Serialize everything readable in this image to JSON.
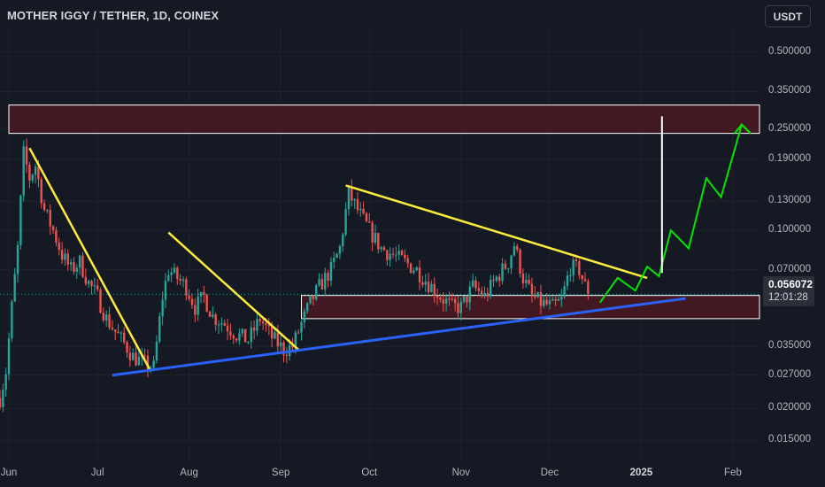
{
  "title": "MOTHER IGGY / TETHER, 1D, COINEX",
  "currency_button": "USDT",
  "colors": {
    "background": "#151924",
    "up": "#26a69a",
    "down": "#ef5350",
    "yellow_trend": "#ffeb3b",
    "blue_trend": "#2962ff",
    "green_projection": "#00e600",
    "zone_fill": "#4a1a22",
    "zone_border": "#ffffff",
    "arrow": "#ffffff"
  },
  "current_price": {
    "price": "0.056072",
    "countdown": "12:01:28"
  },
  "chart_data": {
    "type": "candlestick",
    "y_scale": "log",
    "y_ticks": [
      "0.500000",
      "0.350000",
      "0.250000",
      "0.190000",
      "0.130000",
      "0.100000",
      "0.070000",
      "0.035000",
      "0.027000",
      "0.020000",
      "0.015000"
    ],
    "x_ticks": [
      "Jun",
      "Jul",
      "Aug",
      "Sep",
      "Oct",
      "Nov",
      "Dec",
      "2025",
      "Feb"
    ],
    "bold_x_tick": "2025",
    "x_range": [
      "2024-05-29",
      "2025-02-10"
    ],
    "ylim": [
      0.0125,
      0.62
    ],
    "last_close": 0.056072,
    "price_path": [
      [
        "2024-05-29",
        0.022
      ],
      [
        "2024-05-31",
        0.028
      ],
      [
        "2024-06-02",
        0.05
      ],
      [
        "2024-06-04",
        0.085
      ],
      [
        "2024-06-06",
        0.2
      ],
      [
        "2024-06-08",
        0.16
      ],
      [
        "2024-06-10",
        0.18
      ],
      [
        "2024-06-13",
        0.12
      ],
      [
        "2024-06-16",
        0.1
      ],
      [
        "2024-06-19",
        0.08
      ],
      [
        "2024-06-22",
        0.07
      ],
      [
        "2024-06-25",
        0.075
      ],
      [
        "2024-06-28",
        0.062
      ],
      [
        "2024-07-01",
        0.055
      ],
      [
        "2024-07-04",
        0.045
      ],
      [
        "2024-07-07",
        0.04
      ],
      [
        "2024-07-10",
        0.036
      ],
      [
        "2024-07-13",
        0.032
      ],
      [
        "2024-07-17",
        0.03
      ],
      [
        "2024-07-20",
        0.029
      ],
      [
        "2024-07-23",
        0.055
      ],
      [
        "2024-07-25",
        0.07
      ],
      [
        "2024-07-28",
        0.065
      ],
      [
        "2024-07-31",
        0.06
      ],
      [
        "2024-08-03",
        0.05
      ],
      [
        "2024-08-06",
        0.055
      ],
      [
        "2024-08-09",
        0.046
      ],
      [
        "2024-08-13",
        0.043
      ],
      [
        "2024-08-17",
        0.039
      ],
      [
        "2024-08-21",
        0.037
      ],
      [
        "2024-08-25",
        0.045
      ],
      [
        "2024-08-29",
        0.038
      ],
      [
        "2024-09-02",
        0.034
      ],
      [
        "2024-09-05",
        0.035
      ],
      [
        "2024-09-08",
        0.043
      ],
      [
        "2024-09-11",
        0.052
      ],
      [
        "2024-09-14",
        0.06
      ],
      [
        "2024-09-18",
        0.07
      ],
      [
        "2024-09-21",
        0.085
      ],
      [
        "2024-09-24",
        0.14
      ],
      [
        "2024-09-27",
        0.12
      ],
      [
        "2024-10-01",
        0.1
      ],
      [
        "2024-10-05",
        0.085
      ],
      [
        "2024-10-09",
        0.08
      ],
      [
        "2024-10-13",
        0.075
      ],
      [
        "2024-10-17",
        0.07
      ],
      [
        "2024-10-21",
        0.062
      ],
      [
        "2024-10-25",
        0.055
      ],
      [
        "2024-10-29",
        0.05
      ],
      [
        "2024-11-01",
        0.05
      ],
      [
        "2024-11-05",
        0.06
      ],
      [
        "2024-11-09",
        0.055
      ],
      [
        "2024-11-13",
        0.065
      ],
      [
        "2024-11-17",
        0.075
      ],
      [
        "2024-11-19",
        0.088
      ],
      [
        "2024-11-22",
        0.065
      ],
      [
        "2024-11-25",
        0.055
      ],
      [
        "2024-11-28",
        0.052
      ],
      [
        "2024-12-02",
        0.05
      ],
      [
        "2024-12-05",
        0.053
      ],
      [
        "2024-12-08",
        0.072
      ],
      [
        "2024-12-11",
        0.07
      ],
      [
        "2024-12-14",
        0.056072
      ]
    ],
    "annotations": {
      "resistance_zone": {
        "from": "2024-06-01",
        "to": "2025-02-10",
        "low": 0.24,
        "high": 0.31
      },
      "support_zone": {
        "from": "2024-09-08",
        "to": "2025-02-10",
        "low": 0.045,
        "high": 0.0555
      },
      "yellow_trendlines": [
        [
          [
            "2024-06-08",
            0.21
          ],
          [
            "2024-07-19",
            0.028
          ]
        ],
        [
          [
            "2024-07-25",
            0.098
          ],
          [
            "2024-09-07",
            0.034
          ]
        ],
        [
          [
            "2024-09-23",
            0.15
          ],
          [
            "2025-01-03",
            0.065
          ]
        ]
      ],
      "blue_trendline": [
        [
          "2024-07-06",
          0.027
        ],
        [
          "2025-01-16",
          0.054
        ]
      ],
      "green_projection": [
        [
          "2024-12-18",
          0.052
        ],
        [
          "2024-12-24",
          0.065
        ],
        [
          "2024-12-30",
          0.058
        ],
        [
          "2025-01-03",
          0.072
        ],
        [
          "2025-01-07",
          0.066
        ],
        [
          "2025-01-11",
          0.1
        ],
        [
          "2025-01-17",
          0.085
        ],
        [
          "2025-01-23",
          0.16
        ],
        [
          "2025-01-28",
          0.135
        ],
        [
          "2025-02-04",
          0.26
        ],
        [
          "2025-02-07",
          0.24
        ]
      ],
      "vertical_arrow": {
        "date": "2025-01-08",
        "from": 0.068,
        "to": 0.28
      }
    }
  }
}
